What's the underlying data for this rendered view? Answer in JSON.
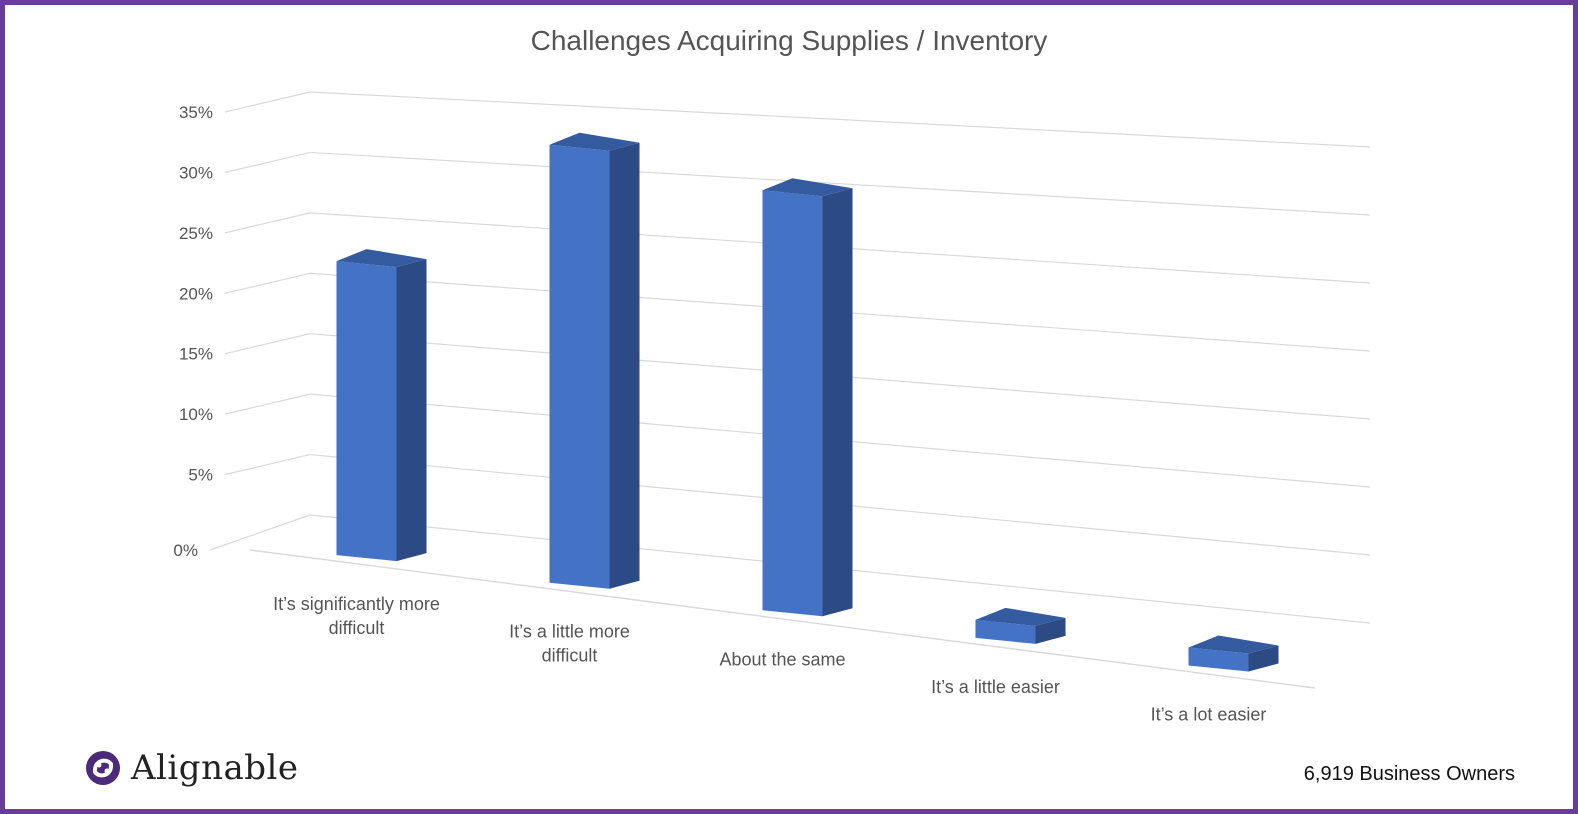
{
  "chart_data": {
    "type": "bar",
    "title": "Challenges Acquiring Supplies / Inventory",
    "categories": [
      [
        "It’s significantly more",
        "difficult"
      ],
      [
        "It’s a little more",
        "difficult"
      ],
      [
        "About the same"
      ],
      [
        "It’s a little easier"
      ],
      [
        "It’s a lot easier"
      ]
    ],
    "values": [
      24.5,
      36.5,
      35.0,
      1.5,
      1.5
    ],
    "yticks": [
      "0%",
      "5%",
      "10%",
      "15%",
      "20%",
      "25%",
      "30%",
      "35%"
    ],
    "ylim": [
      0,
      35
    ],
    "grid": true,
    "three_d": true,
    "colors": {
      "front": "#4472c4",
      "side": "#2c4a84",
      "top": "#345aa0"
    }
  },
  "brand": {
    "name": "Alignable",
    "color": "#4b2a7a"
  },
  "footer": {
    "respondents": "6,919 Business Owners"
  }
}
